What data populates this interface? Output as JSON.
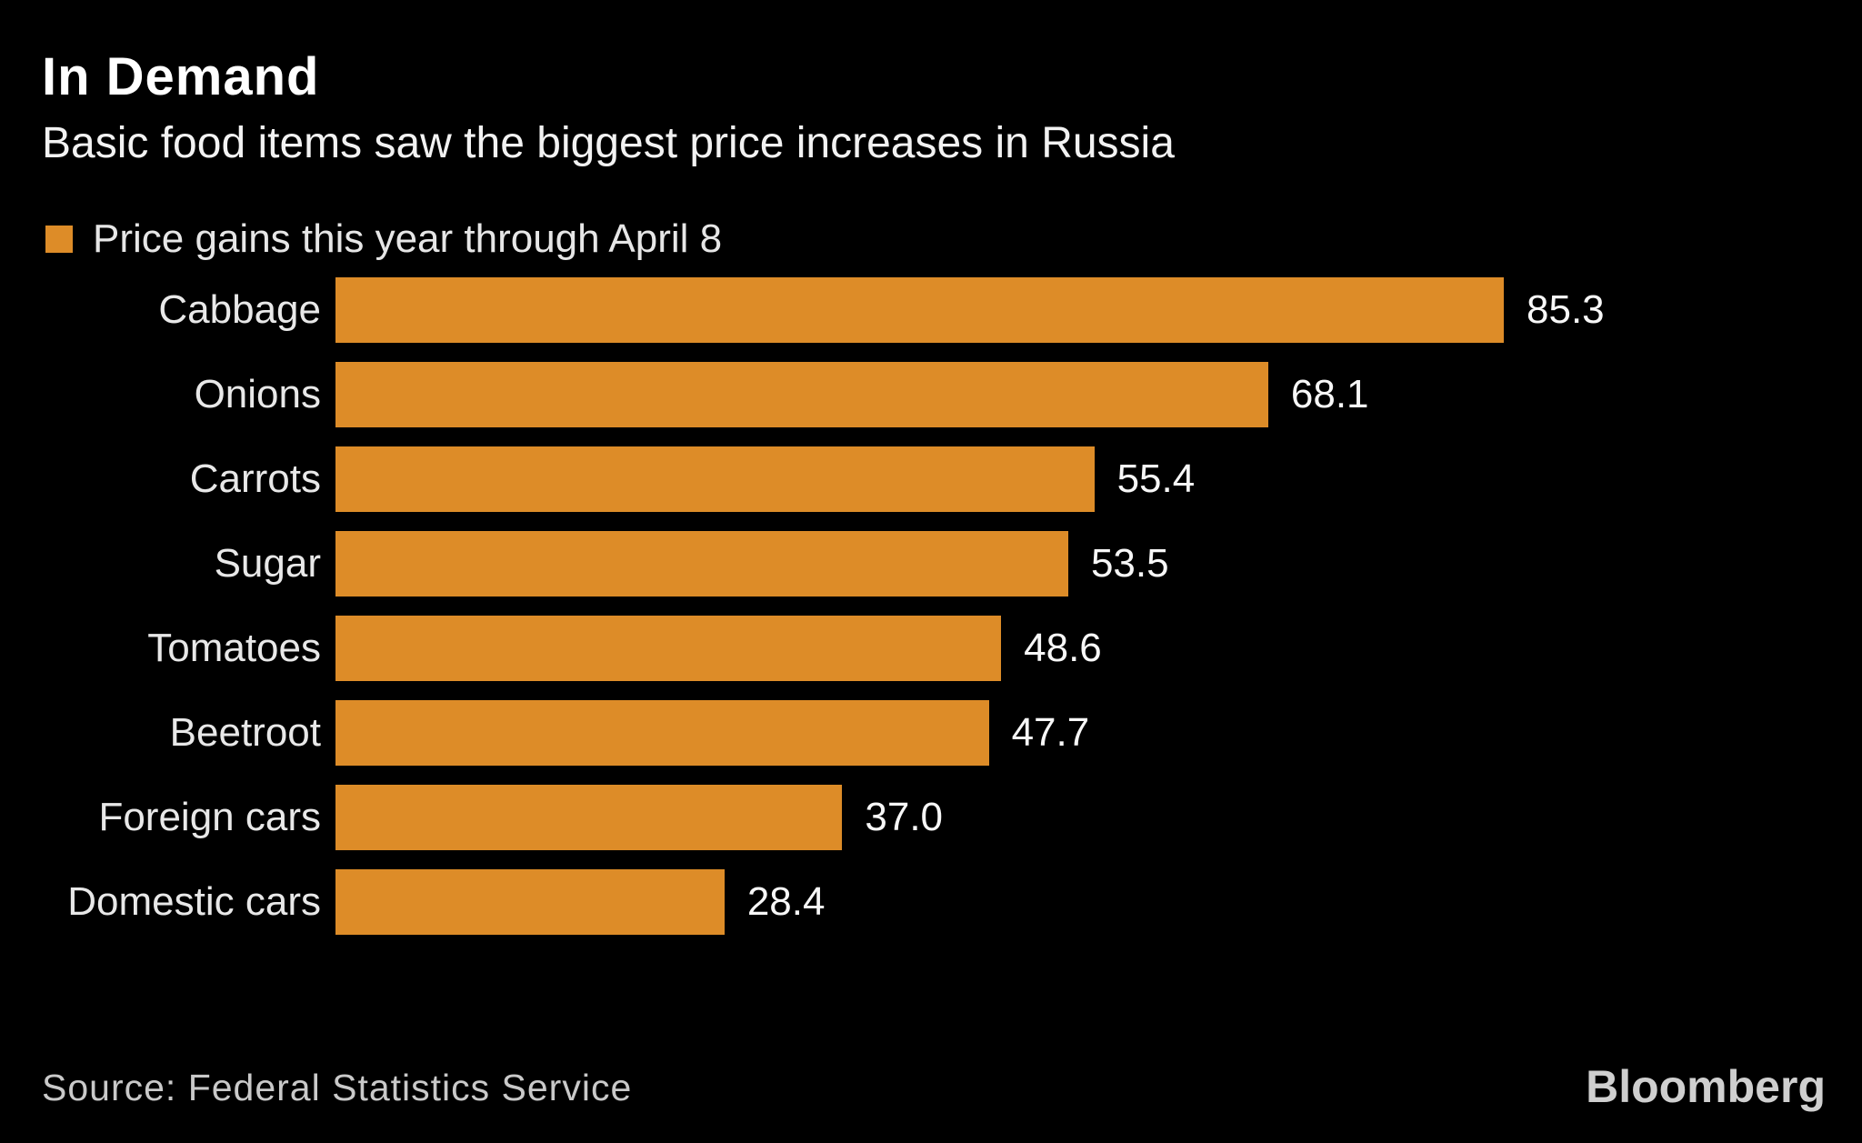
{
  "header": {
    "title": "In Demand",
    "subtitle": "Basic food items saw the biggest price increases in Russia"
  },
  "legend": {
    "label": "Price gains this year through April 8",
    "swatch_color": "#DD8C28"
  },
  "chart_data": {
    "type": "bar",
    "orientation": "horizontal",
    "title": "In Demand",
    "subtitle": "Basic food items saw the biggest price increases in Russia",
    "series_name": "Price gains this year through April 8",
    "categories": [
      "Cabbage",
      "Onions",
      "Carrots",
      "Sugar",
      "Tomatoes",
      "Beetroot",
      "Foreign cars",
      "Domestic cars"
    ],
    "values": [
      85.3,
      68.1,
      55.4,
      53.5,
      48.6,
      47.7,
      37.0,
      28.4
    ],
    "value_labels": [
      "85.3",
      "68.1",
      "55.4",
      "53.5",
      "48.6",
      "47.7",
      "37.0",
      "28.4"
    ],
    "xlim": [
      0,
      85.3
    ],
    "bar_color": "#DD8C28",
    "grid": false,
    "axis_lines": false,
    "legend_position": "top-left",
    "value_label_position": "end-of-bar"
  },
  "footer": {
    "source": "Source: Federal Statistics Service",
    "brand": "Bloomberg"
  }
}
